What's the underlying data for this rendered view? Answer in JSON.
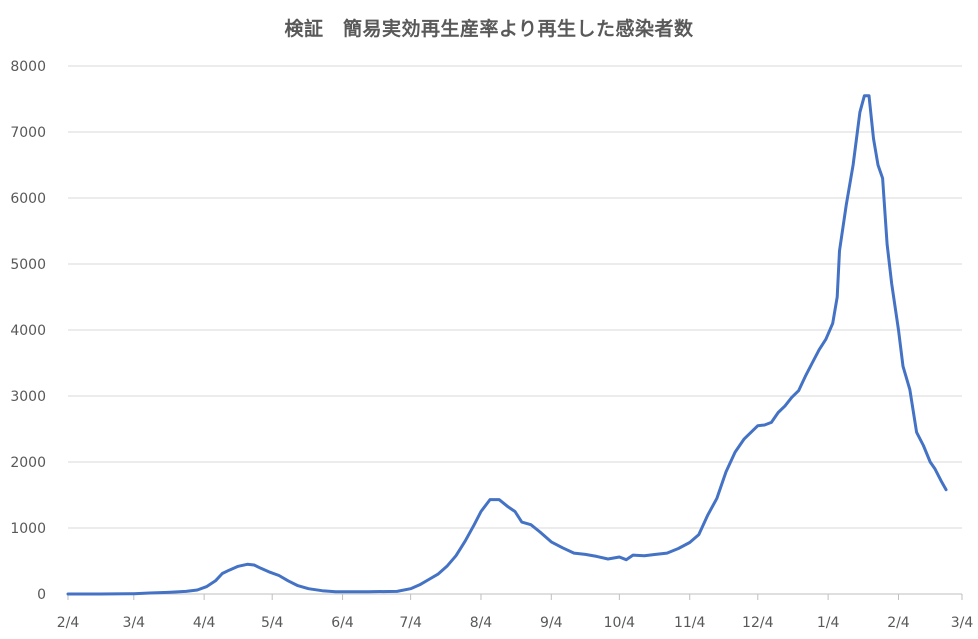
{
  "chart_data": {
    "type": "line",
    "title": "検証　簡易実効再生産率より再生した感染者数",
    "xlabel": "",
    "ylabel": "",
    "ylim": [
      0,
      8000
    ],
    "yticks": [
      0,
      1000,
      2000,
      3000,
      4000,
      5000,
      6000,
      7000,
      8000
    ],
    "xlim": [
      "2020-02-04",
      "2021-03-04"
    ],
    "xticks": [
      {
        "date": "2020-02-04",
        "label": "2/4"
      },
      {
        "date": "2020-03-04",
        "label": "3/4"
      },
      {
        "date": "2020-04-04",
        "label": "4/4"
      },
      {
        "date": "2020-05-04",
        "label": "5/4"
      },
      {
        "date": "2020-06-04",
        "label": "6/4"
      },
      {
        "date": "2020-07-04",
        "label": "7/4"
      },
      {
        "date": "2020-08-04",
        "label": "8/4"
      },
      {
        "date": "2020-09-04",
        "label": "9/4"
      },
      {
        "date": "2020-10-04",
        "label": "10/4"
      },
      {
        "date": "2020-11-04",
        "label": "11/4"
      },
      {
        "date": "2020-12-04",
        "label": "12/4"
      },
      {
        "date": "2021-01-04",
        "label": "1/4"
      },
      {
        "date": "2021-02-04",
        "label": "2/4"
      },
      {
        "date": "2021-03-04",
        "label": "3/4"
      }
    ],
    "grid": true,
    "legend": "none",
    "series": [
      {
        "color": "#4472c4",
        "points": [
          [
            "2020-02-04",
            0
          ],
          [
            "2020-02-18",
            0
          ],
          [
            "2020-03-04",
            5
          ],
          [
            "2020-03-11",
            15
          ],
          [
            "2020-03-19",
            25
          ],
          [
            "2020-03-27",
            40
          ],
          [
            "2020-04-01",
            60
          ],
          [
            "2020-04-05",
            110
          ],
          [
            "2020-04-09",
            200
          ],
          [
            "2020-04-12",
            310
          ],
          [
            "2020-04-15",
            360
          ],
          [
            "2020-04-19",
            420
          ],
          [
            "2020-04-23",
            450
          ],
          [
            "2020-04-26",
            440
          ],
          [
            "2020-04-29",
            390
          ],
          [
            "2020-05-03",
            330
          ],
          [
            "2020-05-07",
            280
          ],
          [
            "2020-05-11",
            200
          ],
          [
            "2020-05-15",
            130
          ],
          [
            "2020-05-20",
            80
          ],
          [
            "2020-05-26",
            50
          ],
          [
            "2020-06-01",
            35
          ],
          [
            "2020-06-15",
            35
          ],
          [
            "2020-06-28",
            40
          ],
          [
            "2020-07-04",
            80
          ],
          [
            "2020-07-08",
            140
          ],
          [
            "2020-07-12",
            220
          ],
          [
            "2020-07-16",
            300
          ],
          [
            "2020-07-20",
            420
          ],
          [
            "2020-07-24",
            580
          ],
          [
            "2020-07-28",
            800
          ],
          [
            "2020-08-01",
            1050
          ],
          [
            "2020-08-04",
            1250
          ],
          [
            "2020-08-08",
            1430
          ],
          [
            "2020-08-12",
            1430
          ],
          [
            "2020-08-16",
            1320
          ],
          [
            "2020-08-19",
            1250
          ],
          [
            "2020-08-22",
            1090
          ],
          [
            "2020-08-26",
            1050
          ],
          [
            "2020-08-30",
            940
          ],
          [
            "2020-09-04",
            790
          ],
          [
            "2020-09-09",
            700
          ],
          [
            "2020-09-14",
            620
          ],
          [
            "2020-09-19",
            600
          ],
          [
            "2020-09-24",
            570
          ],
          [
            "2020-09-29",
            530
          ],
          [
            "2020-10-04",
            560
          ],
          [
            "2020-10-07",
            520
          ],
          [
            "2020-10-10",
            590
          ],
          [
            "2020-10-15",
            580
          ],
          [
            "2020-10-20",
            600
          ],
          [
            "2020-10-25",
            620
          ],
          [
            "2020-10-30",
            690
          ],
          [
            "2020-11-04",
            780
          ],
          [
            "2020-11-08",
            900
          ],
          [
            "2020-11-12",
            1200
          ],
          [
            "2020-11-16",
            1450
          ],
          [
            "2020-11-20",
            1850
          ],
          [
            "2020-11-24",
            2150
          ],
          [
            "2020-11-28",
            2350
          ],
          [
            "2020-12-01",
            2450
          ],
          [
            "2020-12-04",
            2550
          ],
          [
            "2020-12-07",
            2560
          ],
          [
            "2020-12-10",
            2600
          ],
          [
            "2020-12-13",
            2750
          ],
          [
            "2020-12-16",
            2850
          ],
          [
            "2020-12-19",
            2980
          ],
          [
            "2020-12-22",
            3080
          ],
          [
            "2020-12-25",
            3300
          ],
          [
            "2020-12-28",
            3500
          ],
          [
            "2020-12-31",
            3700
          ],
          [
            "2021-01-03",
            3860
          ],
          [
            "2021-01-06",
            4100
          ],
          [
            "2021-01-08",
            4500
          ],
          [
            "2021-01-09",
            5200
          ],
          [
            "2021-01-12",
            5900
          ],
          [
            "2021-01-15",
            6500
          ],
          [
            "2021-01-18",
            7300
          ],
          [
            "2021-01-20",
            7550
          ],
          [
            "2021-01-22",
            7550
          ],
          [
            "2021-01-24",
            6900
          ],
          [
            "2021-01-26",
            6500
          ],
          [
            "2021-01-28",
            6300
          ],
          [
            "2021-01-30",
            5300
          ],
          [
            "2021-02-01",
            4700
          ],
          [
            "2021-02-04",
            4000
          ],
          [
            "2021-02-06",
            3450
          ],
          [
            "2021-02-09",
            3100
          ],
          [
            "2021-02-12",
            2450
          ],
          [
            "2021-02-15",
            2250
          ],
          [
            "2021-02-18",
            2000
          ],
          [
            "2021-02-20",
            1900
          ],
          [
            "2021-02-23",
            1700
          ],
          [
            "2021-02-25",
            1580
          ]
        ]
      }
    ]
  }
}
